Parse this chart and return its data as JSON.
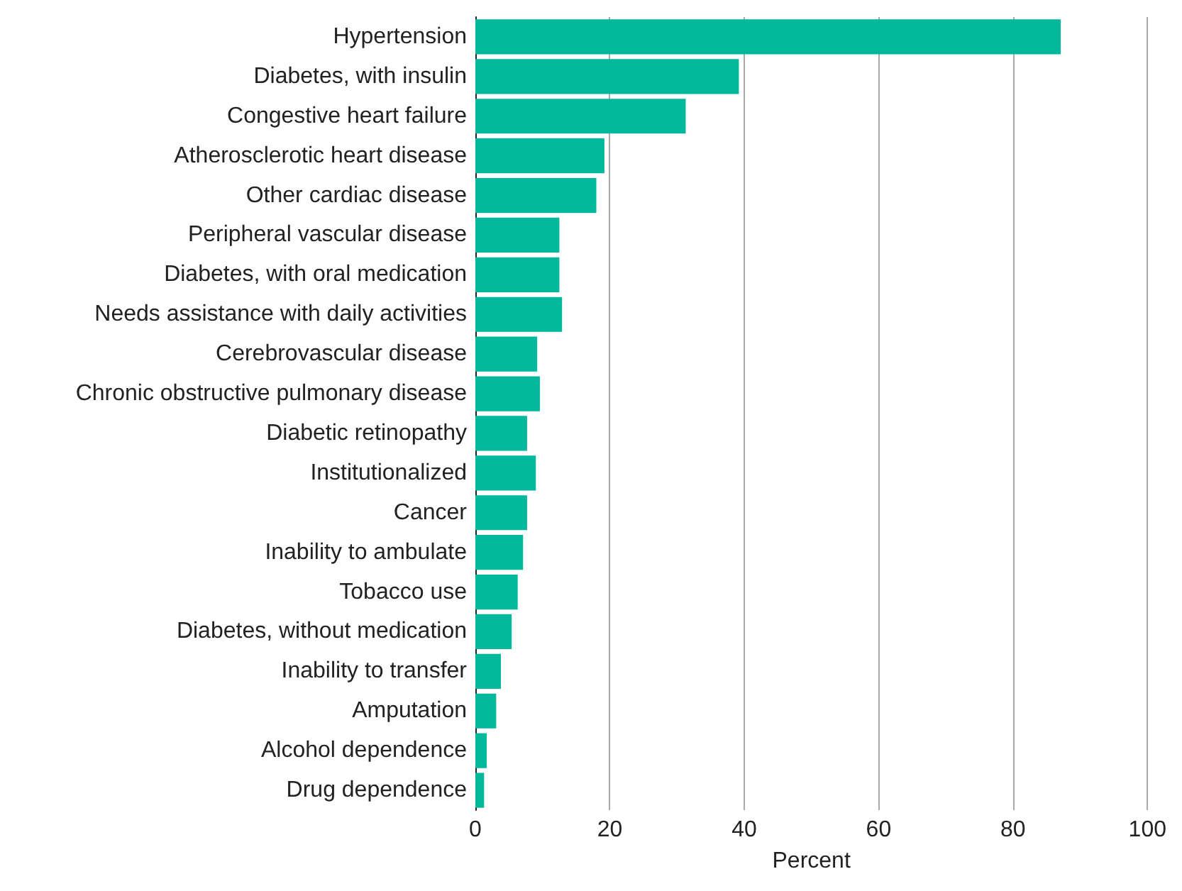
{
  "chart_data": {
    "type": "bar",
    "orientation": "horizontal",
    "xlabel": "Percent",
    "categories": [
      "Hypertension",
      "Diabetes, with insulin",
      "Congestive heart failure",
      "Atherosclerotic heart disease",
      "Other cardiac disease",
      "Peripheral vascular disease",
      "Diabetes, with oral medication",
      "Needs assistance with daily activities",
      "Cerebrovascular disease",
      "Chronic obstructive pulmonary disease",
      "Diabetic retinopathy",
      "Institutionalized",
      "Cancer",
      "Inability to ambulate",
      "Tobacco use",
      "Diabetes, without medication",
      "Inability to transfer",
      "Amputation",
      "Alcohol dependence",
      "Drug dependence"
    ],
    "values": [
      87.1,
      39.2,
      31.3,
      19.2,
      18.0,
      12.5,
      12.5,
      12.9,
      9.2,
      9.6,
      7.7,
      9.0,
      7.7,
      7.1,
      6.3,
      5.4,
      3.8,
      3.1,
      1.7,
      1.3
    ],
    "color": "#00b89c",
    "xlim": [
      0,
      100
    ],
    "xticks": [
      0,
      20,
      40,
      60,
      80,
      100
    ],
    "grid": "x"
  }
}
